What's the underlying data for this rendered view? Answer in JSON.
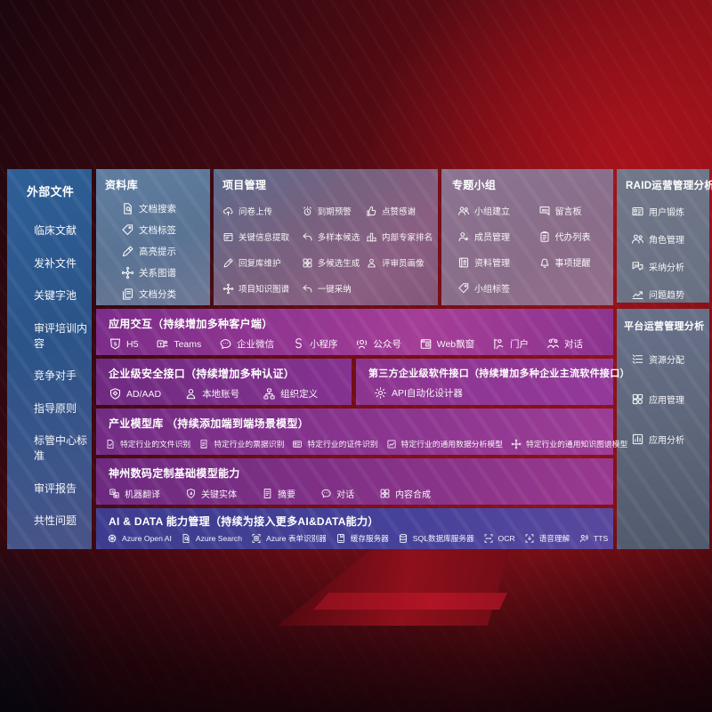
{
  "colors": {
    "background_red": "#8c1118",
    "panel_blue": "#2e5f97",
    "panel_slate": "#6a7285",
    "row_purple": "#8a3590",
    "row_indigo": "#43418f",
    "text": "#ffffff"
  },
  "left_panel": {
    "title": "外部文件",
    "items": [
      "临床文献",
      "发补文件",
      "关键字池",
      "审评培训内容",
      "竞争对手",
      "指导原则",
      "标管中心标准",
      "审评报告",
      "共性问题"
    ]
  },
  "library": {
    "title": "资料库",
    "items": [
      {
        "icon": "doc-search",
        "label": "文档搜索"
      },
      {
        "icon": "tag",
        "label": "文档标签"
      },
      {
        "icon": "highlight",
        "label": "高亮提示"
      },
      {
        "icon": "graph",
        "label": "关系图谱"
      },
      {
        "icon": "doc-copy",
        "label": "文档分类"
      }
    ]
  },
  "project": {
    "title": "项目管理",
    "items": [
      {
        "icon": "cloud-upload",
        "label": "问卷上传"
      },
      {
        "icon": "alarm",
        "label": "到期预警"
      },
      {
        "icon": "thumbs-up",
        "label": "点赞感谢"
      },
      {
        "icon": "doc-extract",
        "label": "关键信息提取"
      },
      {
        "icon": "reply-arrow",
        "label": "多样本候选"
      },
      {
        "icon": "ranking",
        "label": "内部专家排名"
      },
      {
        "icon": "highlight",
        "label": "回复库维护"
      },
      {
        "icon": "puzzle",
        "label": "多候选生成"
      },
      {
        "icon": "person",
        "label": "评审员画像"
      },
      {
        "icon": "graph",
        "label": "项目知识图谱"
      },
      {
        "icon": "reply-arrow",
        "label": "一键采纳"
      }
    ]
  },
  "topic_group": {
    "title": "专题小组",
    "items": [
      {
        "icon": "people",
        "label": "小组建立"
      },
      {
        "icon": "bbs",
        "label": "留言板"
      },
      {
        "icon": "person-add",
        "label": "成员管理"
      },
      {
        "icon": "clipboard",
        "label": "代办列表"
      },
      {
        "icon": "album",
        "label": "资料管理"
      },
      {
        "icon": "bell",
        "label": "事项提醒"
      },
      {
        "icon": "tag",
        "label": "小组标签"
      }
    ]
  },
  "raid": {
    "title": "RAID运营管理分析",
    "items": [
      {
        "icon": "id-card",
        "label": "用户锻炼"
      },
      {
        "icon": "people",
        "label": "角色管理"
      },
      {
        "icon": "qa-chat",
        "label": "采纳分析"
      },
      {
        "icon": "trend-chart",
        "label": "问题趋势"
      }
    ]
  },
  "platform": {
    "title": "平台运营管理分析",
    "items": [
      {
        "icon": "list",
        "label": "资源分配"
      },
      {
        "icon": "grid",
        "label": "应用管理"
      },
      {
        "icon": "chart-box",
        "label": "应用分析"
      }
    ]
  },
  "interaction": {
    "title": "应用交互（持续增加多种客户端）",
    "items": [
      {
        "icon": "h5",
        "label": "H5"
      },
      {
        "icon": "teams",
        "label": "Teams"
      },
      {
        "icon": "chat-dots",
        "label": "企业微信"
      },
      {
        "icon": "mini-program",
        "label": "小程序"
      },
      {
        "icon": "official-account",
        "label": "公众号"
      },
      {
        "icon": "web-window",
        "label": "Web飘窗"
      },
      {
        "icon": "portal",
        "label": "门户"
      },
      {
        "icon": "dialog",
        "label": "对话"
      }
    ]
  },
  "security": {
    "title": "企业级安全接口（持续增加多种认证）",
    "items": [
      {
        "icon": "ad-shield",
        "label": "AD/AAD"
      },
      {
        "icon": "person",
        "label": "本地账号"
      },
      {
        "icon": "org",
        "label": "组织定义"
      }
    ]
  },
  "third_party": {
    "title": "第三方企业级软件接口（持续增加多种企业主流软件接口）",
    "items": [
      {
        "icon": "api-gear",
        "label": "API自动化设计器"
      }
    ]
  },
  "industry_models": {
    "title": "产业模型库 （持续添加端到端场景模型）",
    "items": [
      {
        "icon": "doc-check",
        "label": "特定行业的文件识别"
      },
      {
        "icon": "invoice",
        "label": "特定行业的票据识别"
      },
      {
        "icon": "id-card",
        "label": "特定行业的证件识别"
      },
      {
        "icon": "image-chart",
        "label": "特定行业的通用数据分析模型"
      },
      {
        "icon": "graph",
        "label": "特定行业的通用知识图谱模型"
      }
    ]
  },
  "base_models": {
    "title": "神州数码定制基础模型能力",
    "items": [
      {
        "icon": "translate",
        "label": "机器翻译"
      },
      {
        "icon": "entity-shield",
        "label": "关键实体"
      },
      {
        "icon": "summary-doc",
        "label": "摘要"
      },
      {
        "icon": "chat-dots",
        "label": "对话"
      },
      {
        "icon": "puzzle",
        "label": "内容合成"
      }
    ]
  },
  "ai_data": {
    "title": "AI & DATA 能力管理（持续为接入更多AI&DATA能力）",
    "items": [
      {
        "icon": "openai",
        "label": "Azure Open AI"
      },
      {
        "icon": "doc-search",
        "label": "Azure Search"
      },
      {
        "icon": "form-brackets",
        "label": "Azure 表单识别器"
      },
      {
        "icon": "cache-book",
        "label": "缓存服务器"
      },
      {
        "icon": "sql-db",
        "label": "SQL数据库服务器"
      },
      {
        "icon": "ocr",
        "label": "OCR"
      },
      {
        "icon": "speech-arrow",
        "label": "语音理解"
      },
      {
        "icon": "tts",
        "label": "TTS"
      }
    ]
  }
}
